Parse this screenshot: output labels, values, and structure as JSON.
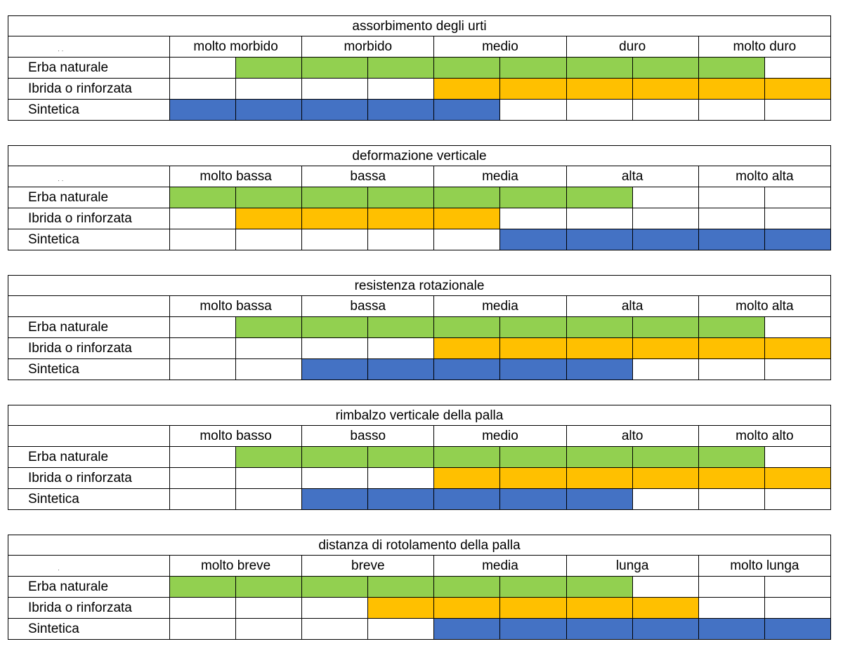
{
  "colors": {
    "green": "#92d050",
    "orange": "#ffc000",
    "blue": "#4472c4"
  },
  "row_labels": [
    "Erba naturale",
    "Ibrida o rinforzata",
    "Sintetica"
  ],
  "tables": [
    {
      "title": "assorbimento degli urti",
      "corner": "· ·",
      "levels": [
        "molto morbido",
        "morbido",
        "medio",
        "duro",
        "molto duro"
      ],
      "fills": [
        {
          "color": "green",
          "cells": [
            0,
            1,
            1,
            1,
            1,
            1,
            1,
            1,
            1,
            0
          ]
        },
        {
          "color": "orange",
          "cells": [
            0,
            0,
            0,
            0,
            1,
            1,
            1,
            1,
            1,
            1
          ]
        },
        {
          "color": "blue",
          "cells": [
            1,
            1,
            1,
            1,
            1,
            0,
            0,
            0,
            0,
            0
          ]
        }
      ]
    },
    {
      "title": "deformazione verticale",
      "corner": "· ·",
      "levels": [
        "molto bassa",
        "bassa",
        "media",
        "alta",
        "molto alta"
      ],
      "fills": [
        {
          "color": "green",
          "cells": [
            1,
            1,
            1,
            1,
            1,
            1,
            1,
            0,
            0,
            0
          ]
        },
        {
          "color": "orange",
          "cells": [
            0,
            1,
            1,
            1,
            1,
            0,
            0,
            0,
            0,
            0
          ]
        },
        {
          "color": "blue",
          "cells": [
            0,
            0,
            0,
            0,
            0,
            1,
            1,
            1,
            1,
            1
          ]
        }
      ]
    },
    {
      "title": "resistenza rotazionale",
      "corner": "",
      "levels": [
        "molto bassa",
        "bassa",
        "media",
        "alta",
        "molto alta"
      ],
      "fills": [
        {
          "color": "green",
          "cells": [
            0,
            1,
            1,
            1,
            1,
            1,
            1,
            1,
            1,
            0
          ]
        },
        {
          "color": "orange",
          "cells": [
            0,
            0,
            0,
            0,
            1,
            1,
            1,
            1,
            1,
            1
          ]
        },
        {
          "color": "blue",
          "cells": [
            0,
            0,
            1,
            1,
            1,
            1,
            1,
            0,
            0,
            0
          ]
        }
      ]
    },
    {
      "title": "rimbalzo verticale della palla",
      "corner": "",
      "levels": [
        "molto basso",
        "basso",
        "medio",
        "alto",
        "molto alto"
      ],
      "fills": [
        {
          "color": "green",
          "cells": [
            0,
            1,
            1,
            1,
            1,
            1,
            1,
            1,
            1,
            0
          ]
        },
        {
          "color": "orange",
          "cells": [
            0,
            0,
            0,
            0,
            1,
            1,
            1,
            1,
            1,
            1
          ]
        },
        {
          "color": "blue",
          "cells": [
            0,
            0,
            1,
            1,
            1,
            1,
            1,
            0,
            0,
            0
          ]
        }
      ]
    },
    {
      "title": "distanza di rotolamento della palla",
      "corner": "·",
      "levels": [
        "molto breve",
        "breve",
        "media",
        "lunga",
        "molto lunga"
      ],
      "fills": [
        {
          "color": "green",
          "cells": [
            1,
            1,
            1,
            1,
            1,
            1,
            1,
            0,
            0,
            0
          ]
        },
        {
          "color": "orange",
          "cells": [
            0,
            0,
            0,
            1,
            1,
            1,
            1,
            1,
            0,
            0
          ]
        },
        {
          "color": "blue",
          "cells": [
            0,
            0,
            0,
            0,
            1,
            1,
            1,
            1,
            1,
            1
          ]
        }
      ]
    }
  ]
}
